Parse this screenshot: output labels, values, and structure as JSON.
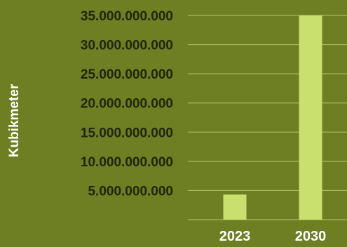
{
  "chart_data": {
    "type": "bar",
    "title": "",
    "xlabel": "",
    "ylabel": "Kubikmeter",
    "categories": [
      "2023",
      "2030"
    ],
    "values": [
      4300000000,
      35000000000
    ],
    "ylim": [
      0,
      35000000000
    ],
    "yticks": [
      {
        "value": 35000000000,
        "label": "35.000.000.000"
      },
      {
        "value": 30000000000,
        "label": "30.000.000.000"
      },
      {
        "value": 25000000000,
        "label": "25.000.000.000"
      },
      {
        "value": 20000000000,
        "label": "20.000.000.000"
      },
      {
        "value": 15000000000,
        "label": "15.000.000.000"
      },
      {
        "value": 10000000000,
        "label": "10.000.000.000"
      },
      {
        "value": 5000000000,
        "label": "5.000.000.000"
      }
    ],
    "grid": true,
    "colors": {
      "background": "#6e7e22",
      "bar": "#c9df6e",
      "grid": "#a9b85f",
      "tick_text": "#1f2508",
      "category_text": "#ffffff",
      "ylabel_text": "#ffffff"
    }
  }
}
